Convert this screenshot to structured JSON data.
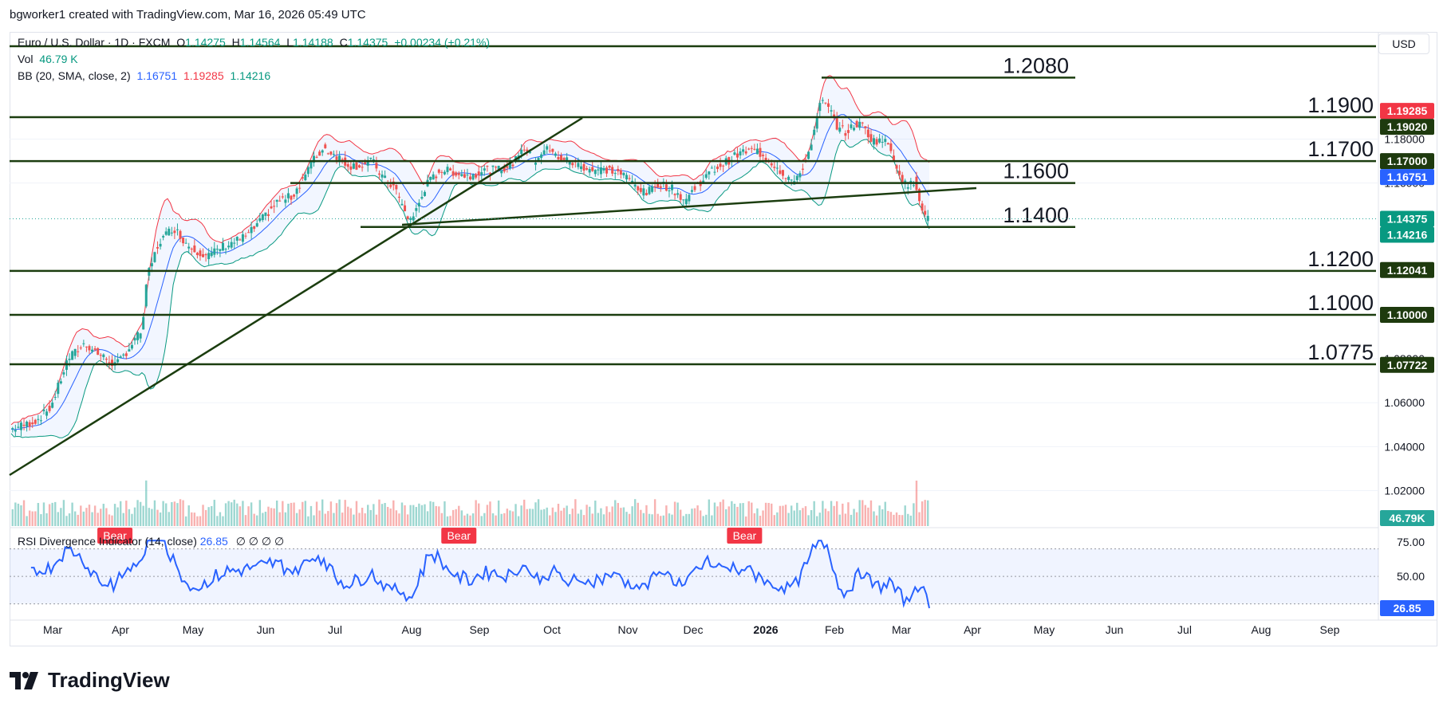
{
  "header": {
    "credit": "bgworker1 created with TradingView.com, Mar 16, 2026 05:49 UTC"
  },
  "legend": {
    "symbol": "Euro / U.S. Dollar · 1D · FXCM",
    "ohlc": {
      "o_label": "O",
      "o": "1.14275",
      "h_label": "H",
      "h": "1.14564",
      "l_label": "L",
      "l": "1.14188",
      "c_label": "C",
      "c": "1.14375",
      "change": "+0.00234 (+0.21%)"
    },
    "vol_label": "Vol",
    "vol_value": "46.79 K",
    "bb_label": "BB (20, SMA, close, 2)",
    "bb_basis": "1.16751",
    "bb_upper": "1.19285",
    "bb_lower": "1.14216"
  },
  "currency_button": "USD",
  "rsi_legend": {
    "label": "RSI Divergence Indicator (14, close)",
    "value": "26.85",
    "extras": "∅ ∅ ∅ ∅"
  },
  "logo_text": "TradingView",
  "colors": {
    "up": "#26a69a",
    "down": "#ef5350",
    "basis": "#2962ff",
    "upper": "#f23645",
    "lower": "#089981",
    "level_line": "#1b3d0f",
    "level_label_bg": "#1e3a0e",
    "rsi_line": "#2962ff",
    "bear_badge": "#f23645"
  },
  "chart_data": {
    "type": "candlestick",
    "x_ticks": [
      "Mar",
      "Apr",
      "May",
      "Jun",
      "Jul",
      "Aug",
      "Sep",
      "Oct",
      "Nov",
      "Dec",
      "2026",
      "Feb",
      "Mar",
      "Apr",
      "May",
      "Jun",
      "Jul",
      "Aug",
      "Sep"
    ],
    "y_ticks": [
      "1.02000",
      "1.04000",
      "1.06000",
      "1.08000",
      "1.16000",
      "1.18000"
    ],
    "ylim": [
      1.005,
      1.222
    ],
    "horizontal_levels": [
      {
        "value": 1.2208,
        "label": ""
      },
      {
        "value": 1.208,
        "label": "1.2080"
      },
      {
        "value": 1.19,
        "label": "1.1900"
      },
      {
        "value": 1.17,
        "label": "1.1700"
      },
      {
        "value": 1.16,
        "label": "1.1600"
      },
      {
        "value": 1.14,
        "label": "1.1400"
      },
      {
        "value": 1.12,
        "label": "1.1200"
      },
      {
        "value": 1.1,
        "label": "1.1000"
      },
      {
        "value": 1.0775,
        "label": "1.0775"
      }
    ],
    "price_axis_labels": [
      {
        "value": 1.19285,
        "text": "1.19285",
        "kind": "upper"
      },
      {
        "value": 1.1902,
        "text": "1.19020",
        "kind": "level"
      },
      {
        "value": 1.17,
        "text": "1.17000",
        "kind": "level"
      },
      {
        "value": 1.16751,
        "text": "1.16751",
        "kind": "basis"
      },
      {
        "value": 1.14375,
        "text": "1.14375",
        "kind": "close"
      },
      {
        "value": 1.14216,
        "text": "1.14216",
        "kind": "lower"
      },
      {
        "value": 1.12041,
        "text": "1.12041",
        "kind": "level"
      },
      {
        "value": 1.1,
        "text": "1.10000",
        "kind": "level"
      },
      {
        "value": 1.07722,
        "text": "1.07722",
        "kind": "level"
      }
    ],
    "volume_label": "46.79K",
    "price_anchors": [
      [
        0,
        1.048
      ],
      [
        10,
        1.05
      ],
      [
        18,
        1.052
      ],
      [
        28,
        1.058
      ],
      [
        40,
        1.08
      ],
      [
        52,
        1.087
      ],
      [
        64,
        1.081
      ],
      [
        74,
        1.077
      ],
      [
        82,
        1.084
      ],
      [
        92,
        1.093
      ],
      [
        96,
        1.118
      ],
      [
        104,
        1.133
      ],
      [
        114,
        1.14
      ],
      [
        124,
        1.132
      ],
      [
        134,
        1.128
      ],
      [
        140,
        1.127
      ],
      [
        148,
        1.131
      ],
      [
        156,
        1.133
      ],
      [
        166,
        1.136
      ],
      [
        176,
        1.143
      ],
      [
        188,
        1.152
      ],
      [
        198,
        1.154
      ],
      [
        212,
        1.17
      ],
      [
        220,
        1.176
      ],
      [
        230,
        1.172
      ],
      [
        238,
        1.168
      ],
      [
        246,
        1.168
      ],
      [
        254,
        1.17
      ],
      [
        262,
        1.162
      ],
      [
        270,
        1.158
      ],
      [
        276,
        1.148
      ],
      [
        280,
        1.143
      ],
      [
        284,
        1.146
      ],
      [
        292,
        1.159
      ],
      [
        302,
        1.166
      ],
      [
        312,
        1.165
      ],
      [
        322,
        1.163
      ],
      [
        332,
        1.166
      ],
      [
        342,
        1.166
      ],
      [
        352,
        1.168
      ],
      [
        360,
        1.177
      ],
      [
        368,
        1.17
      ],
      [
        376,
        1.176
      ],
      [
        384,
        1.172
      ],
      [
        392,
        1.17
      ],
      [
        400,
        1.168
      ],
      [
        410,
        1.166
      ],
      [
        420,
        1.166
      ],
      [
        430,
        1.164
      ],
      [
        440,
        1.159
      ],
      [
        446,
        1.155
      ],
      [
        456,
        1.16
      ],
      [
        466,
        1.157
      ],
      [
        474,
        1.152
      ],
      [
        484,
        1.16
      ],
      [
        494,
        1.166
      ],
      [
        504,
        1.17
      ],
      [
        514,
        1.174
      ],
      [
        524,
        1.175
      ],
      [
        534,
        1.17
      ],
      [
        544,
        1.164
      ],
      [
        552,
        1.16
      ],
      [
        560,
        1.172
      ],
      [
        566,
        1.186
      ],
      [
        570,
        1.198
      ],
      [
        576,
        1.193
      ],
      [
        582,
        1.185
      ],
      [
        588,
        1.183
      ],
      [
        594,
        1.187
      ],
      [
        600,
        1.186
      ],
      [
        606,
        1.179
      ],
      [
        612,
        1.18
      ],
      [
        618,
        1.177
      ],
      [
        624,
        1.166
      ],
      [
        630,
        1.158
      ],
      [
        636,
        1.161
      ],
      [
        640,
        1.151
      ],
      [
        644,
        1.143
      ],
      [
        646,
        1.14375
      ]
    ],
    "rsi": {
      "ylim": [
        20,
        80
      ],
      "levels": [
        70,
        50,
        30
      ],
      "y_ticks": [
        "75.00",
        "50.00"
      ],
      "current": 26.85,
      "badges": [
        {
          "label": "Bear",
          "at": 73
        },
        {
          "label": "Bear",
          "at": 315
        },
        {
          "label": "Bear",
          "at": 516
        }
      ]
    }
  }
}
